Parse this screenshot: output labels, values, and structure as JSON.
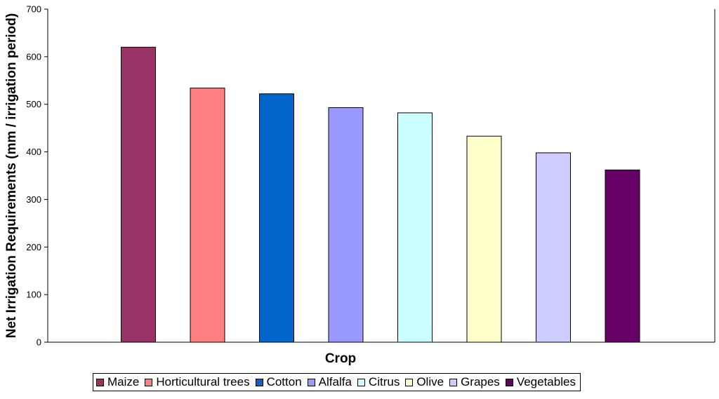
{
  "chart_data": {
    "type": "bar",
    "title": "",
    "xlabel": "Crop",
    "ylabel": "Net Irrigation Requirements (mm / irrigation period)",
    "ylim": [
      0,
      700
    ],
    "yticks": [
      0,
      100,
      200,
      300,
      400,
      500,
      600,
      700
    ],
    "grid": false,
    "legend_position": "bottom",
    "categories": [
      "Maize",
      "Horticultural trees",
      "Cotton",
      "Alfalfa",
      "Citrus",
      "Olive",
      "Grapes",
      "Vegetables"
    ],
    "values": [
      620,
      534,
      522,
      493,
      482,
      433,
      398,
      362
    ],
    "colors": [
      "#993366",
      "#FF8080",
      "#0066CC",
      "#9999FF",
      "#CCFFFF",
      "#FFFFCC",
      "#CCCCFF",
      "#660066"
    ]
  }
}
